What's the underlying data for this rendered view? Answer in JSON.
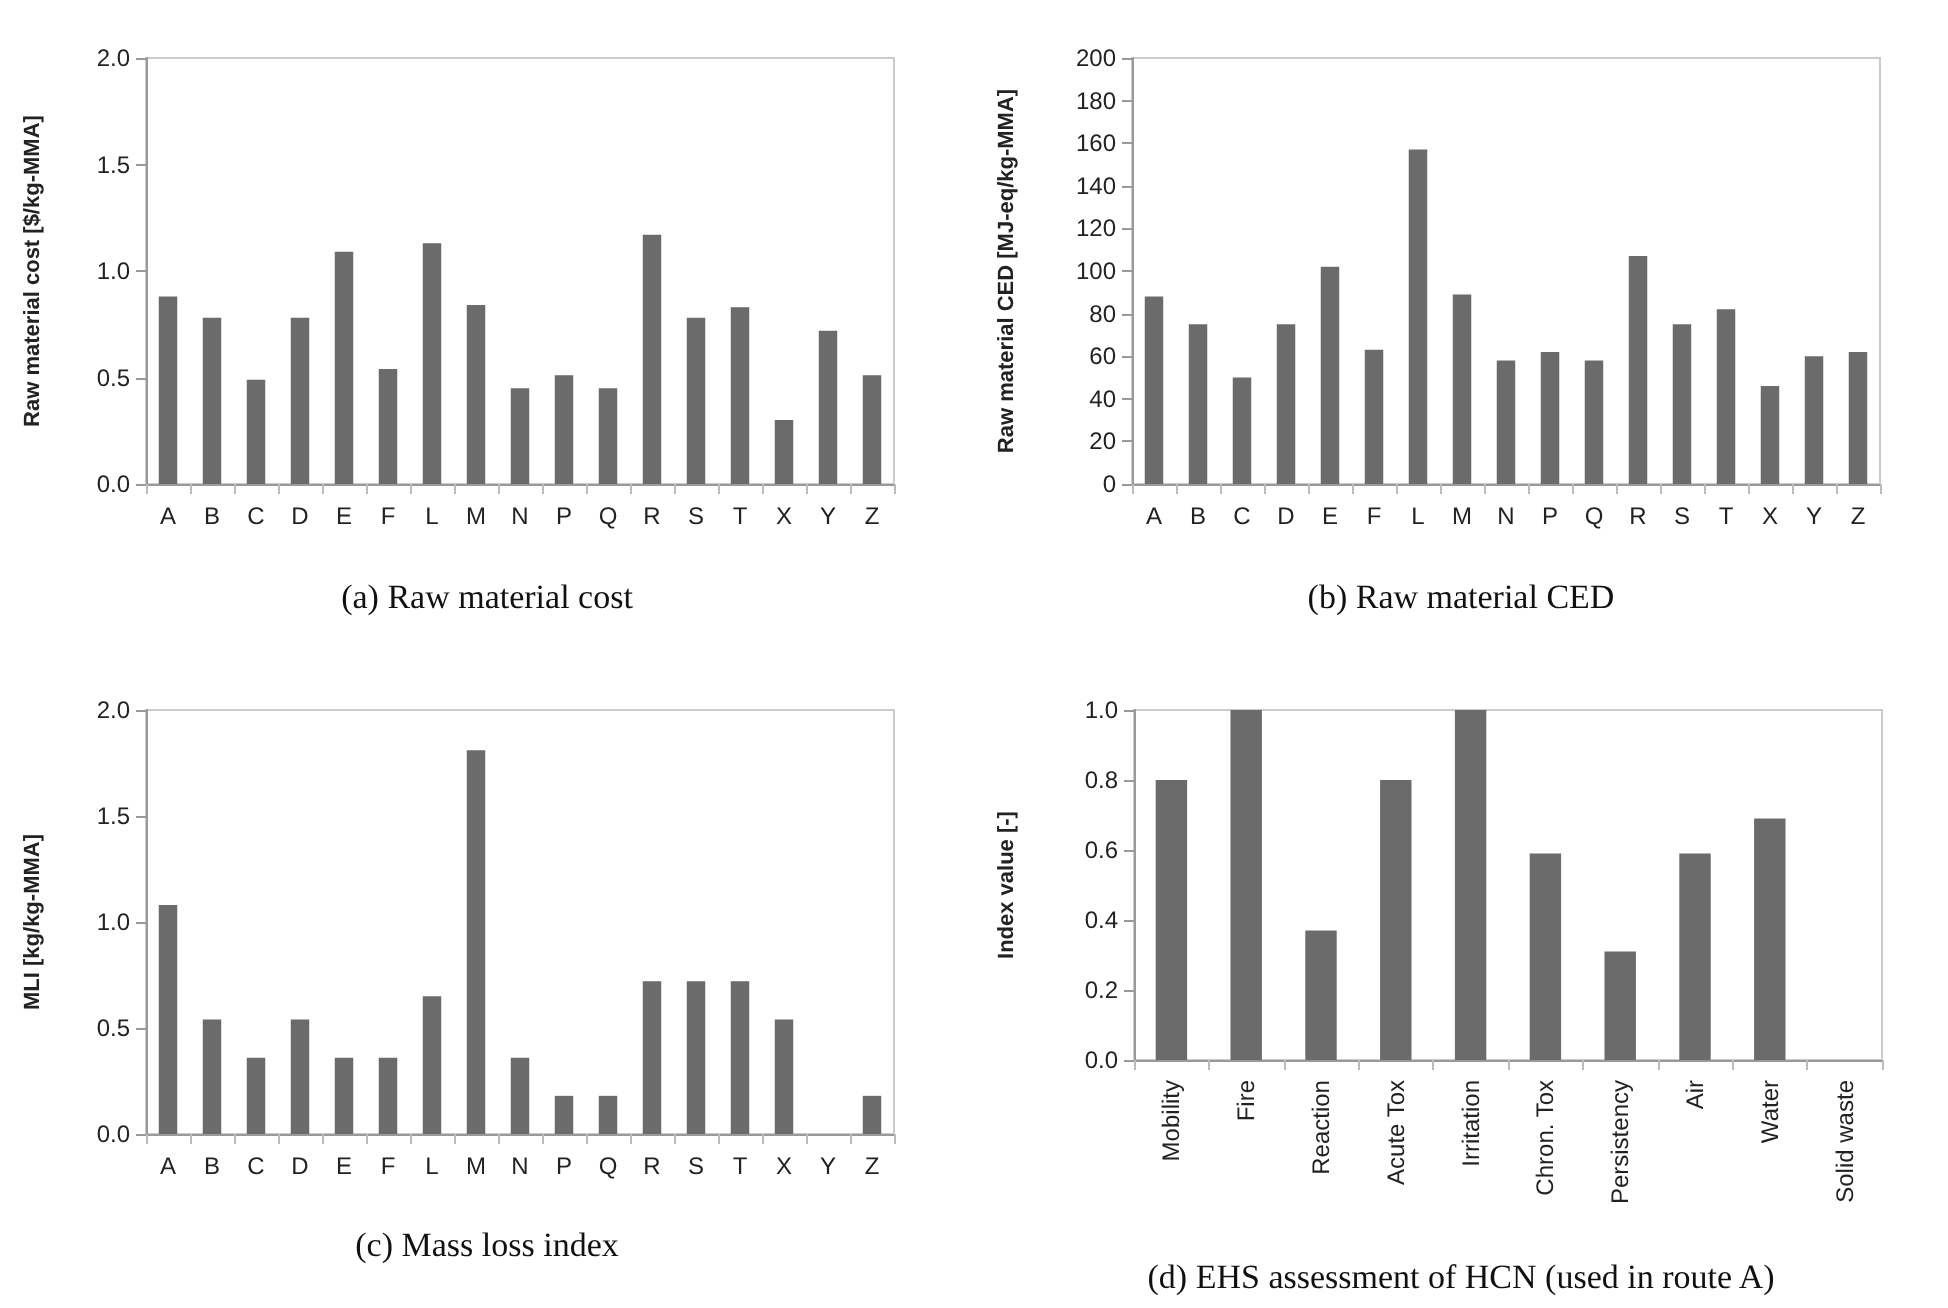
{
  "chart_data": [
    {
      "type": "bar",
      "title": "(a) Raw material cost",
      "ylabel": "Raw material cost [$/kg-MMA]",
      "categories": [
        "A",
        "B",
        "C",
        "D",
        "E",
        "F",
        "L",
        "M",
        "N",
        "P",
        "Q",
        "R",
        "S",
        "T",
        "X",
        "Y",
        "Z"
      ],
      "values": [
        0.88,
        0.78,
        0.49,
        0.78,
        1.09,
        0.54,
        1.13,
        0.84,
        0.45,
        0.51,
        0.45,
        1.17,
        0.78,
        0.83,
        0.3,
        0.72,
        0.51
      ],
      "color": "#6b6b6b",
      "ylim": [
        0,
        2
      ],
      "yticks": [
        {
          "value": 0,
          "label": "0.0"
        },
        {
          "value": 0.5,
          "label": "0.5"
        },
        {
          "value": 1,
          "label": "1.0"
        },
        {
          "value": 1.5,
          "label": "1.5"
        },
        {
          "value": 2,
          "label": "2.0"
        }
      ]
    },
    {
      "type": "bar",
      "title": "(b) Raw material CED",
      "ylabel": "Raw material CED [MJ-eq/kg-MMA]",
      "categories": [
        "A",
        "B",
        "C",
        "D",
        "E",
        "F",
        "L",
        "M",
        "N",
        "P",
        "Q",
        "R",
        "S",
        "T",
        "X",
        "Y",
        "Z"
      ],
      "values": [
        88,
        75,
        50,
        75,
        102,
        63,
        157,
        89,
        58,
        62,
        58,
        107,
        75,
        82,
        46,
        60,
        62
      ],
      "color": "#6b6b6b",
      "ylim": [
        0,
        200
      ],
      "yticks": [
        0,
        20,
        40,
        60,
        80,
        100,
        120,
        140,
        160,
        180,
        200
      ]
    },
    {
      "type": "bar",
      "title": "(c) Mass loss index",
      "ylabel": "MLI [kg/kg-MMA]",
      "categories": [
        "A",
        "B",
        "C",
        "D",
        "E",
        "F",
        "L",
        "M",
        "N",
        "P",
        "Q",
        "R",
        "S",
        "T",
        "X",
        "Y",
        "Z"
      ],
      "values": [
        1.08,
        0.54,
        0.36,
        0.54,
        0.36,
        0.36,
        0.65,
        1.81,
        0.36,
        0.18,
        0.18,
        0.72,
        0.72,
        0.72,
        0.54,
        0,
        0.18
      ],
      "color": "#6b6b6b",
      "ylim": [
        0,
        2
      ],
      "yticks": [
        {
          "value": 0,
          "label": "0.0"
        },
        {
          "value": 0.5,
          "label": "0.5"
        },
        {
          "value": 1,
          "label": "1.0"
        },
        {
          "value": 1.5,
          "label": "1.5"
        },
        {
          "value": 2,
          "label": "2.0"
        }
      ]
    },
    {
      "type": "bar",
      "title": "(d) EHS assessment of HCN (used in route A)",
      "ylabel": "Index value [-]",
      "categories": [
        "Mobility",
        "Fire",
        "Reaction",
        "Acute Tox",
        "Irritation",
        "Chron. Tox",
        "Persistency",
        "Air",
        "Water",
        "Solid waste"
      ],
      "values": [
        0.8,
        1.0,
        0.37,
        0.8,
        1.0,
        0.59,
        0.31,
        0.59,
        0.69,
        0
      ],
      "color": "#6b6b6b",
      "ylim": [
        0,
        1
      ],
      "yticks": [
        {
          "value": 0,
          "label": "0.0"
        },
        {
          "value": 0.2,
          "label": "0.2"
        },
        {
          "value": 0.4,
          "label": "0.4"
        },
        {
          "value": 0.6,
          "label": "0.6"
        },
        {
          "value": 0.8,
          "label": "0.8"
        },
        {
          "value": 1,
          "label": "1.0"
        }
      ]
    }
  ]
}
